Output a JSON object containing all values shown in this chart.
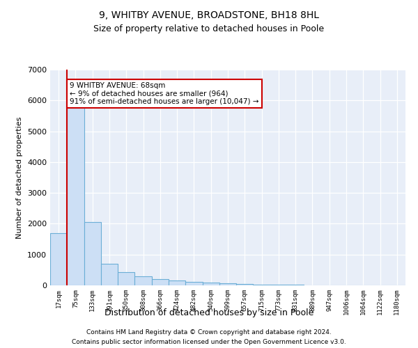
{
  "title": "9, WHITBY AVENUE, BROADSTONE, BH18 8HL",
  "subtitle": "Size of property relative to detached houses in Poole",
  "xlabel": "Distribution of detached houses by size in Poole",
  "ylabel": "Number of detached properties",
  "categories": [
    "17sqm",
    "75sqm",
    "133sqm",
    "191sqm",
    "250sqm",
    "308sqm",
    "366sqm",
    "424sqm",
    "482sqm",
    "540sqm",
    "599sqm",
    "657sqm",
    "715sqm",
    "773sqm",
    "831sqm",
    "889sqm",
    "947sqm",
    "1006sqm",
    "1064sqm",
    "1122sqm",
    "1180sqm"
  ],
  "values": [
    1700,
    5800,
    2050,
    700,
    430,
    300,
    200,
    150,
    120,
    90,
    70,
    50,
    30,
    20,
    15,
    10,
    8,
    6,
    5,
    4,
    3
  ],
  "bar_color": "#ccdff5",
  "bar_edge_color": "#6baed6",
  "red_line_color": "#cc0000",
  "annotation_text": "9 WHITBY AVENUE: 68sqm\n← 9% of detached houses are smaller (964)\n91% of semi-detached houses are larger (10,047) →",
  "annotation_box_color": "#ffffff",
  "annotation_box_edge": "#cc0000",
  "footnote1": "Contains HM Land Registry data © Crown copyright and database right 2024.",
  "footnote2": "Contains public sector information licensed under the Open Government Licence v3.0.",
  "ylim": [
    0,
    7000
  ],
  "plot_bg_color": "#e8eef8"
}
